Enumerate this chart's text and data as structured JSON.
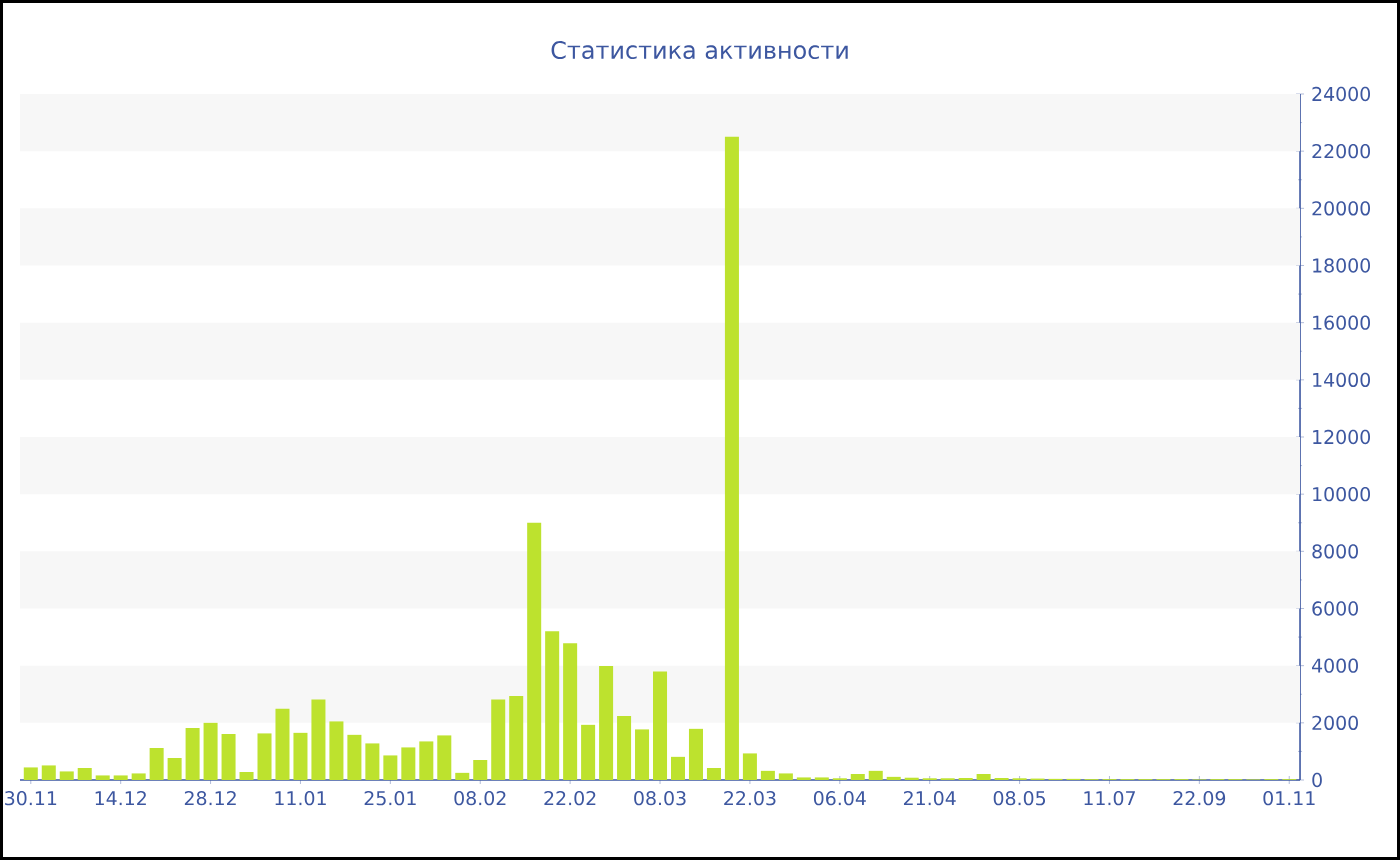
{
  "chart_data": {
    "type": "bar",
    "title": "Статистика активности",
    "categories": [
      "30.11",
      null,
      null,
      null,
      null,
      "14.12",
      null,
      null,
      null,
      null,
      "28.12",
      null,
      null,
      null,
      null,
      "11.01",
      null,
      null,
      null,
      null,
      "25.01",
      null,
      null,
      null,
      null,
      "08.02",
      null,
      null,
      null,
      null,
      "22.02",
      null,
      null,
      null,
      null,
      "08.03",
      null,
      null,
      null,
      null,
      "22.03",
      null,
      null,
      null,
      null,
      "06.04",
      null,
      null,
      null,
      null,
      "21.04",
      null,
      null,
      null,
      null,
      "08.05",
      null,
      null,
      null,
      null,
      "11.07",
      null,
      null,
      null,
      null,
      "22.09",
      null,
      null,
      null,
      null,
      "01.11"
    ],
    "values": [
      440,
      510,
      300,
      420,
      160,
      160,
      230,
      1120,
      770,
      1820,
      2000,
      1610,
      280,
      1630,
      2490,
      1650,
      2820,
      2050,
      1580,
      1280,
      860,
      1140,
      1350,
      1560,
      250,
      700,
      2820,
      2940,
      9000,
      5200,
      4780,
      1930,
      3990,
      2240,
      1770,
      3800,
      810,
      1790,
      420,
      22500,
      930,
      320,
      230,
      90,
      90,
      60,
      210,
      320,
      110,
      80,
      60,
      60,
      70,
      210,
      70,
      60,
      50,
      40,
      40,
      30,
      30,
      30,
      30,
      30,
      30,
      20,
      30,
      30,
      20,
      30,
      30
    ],
    "color": "#bde22e",
    "ylim": [
      0,
      24000
    ],
    "yticks": [
      0,
      2000,
      4000,
      6000,
      8000,
      10000,
      12000,
      14000,
      16000,
      18000,
      20000,
      22000,
      24000
    ]
  }
}
